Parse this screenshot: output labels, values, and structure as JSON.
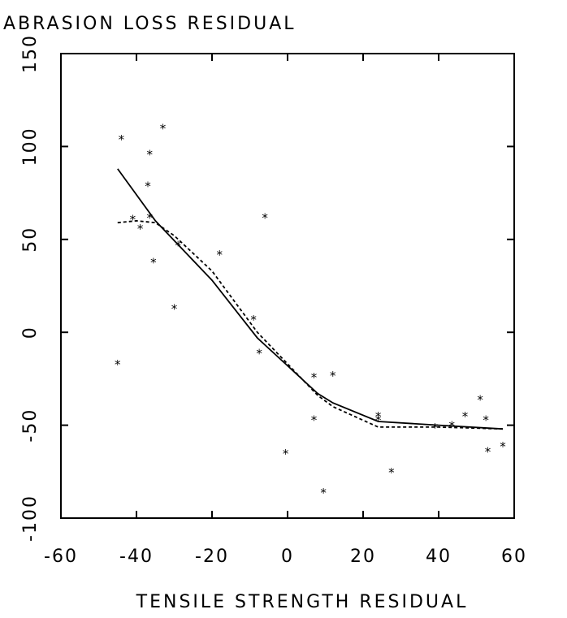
{
  "chart_data": {
    "type": "scatter",
    "title": "ABRASION LOSS RESIDUAL",
    "xlabel": "TENSILE STRENGTH RESIDUAL",
    "ylabel": "",
    "xlim": [
      -60,
      60
    ],
    "ylim": [
      -100,
      150
    ],
    "xticks": [
      -60,
      -40,
      -20,
      0,
      20,
      40,
      60
    ],
    "yticks": [
      -100,
      -50,
      0,
      50,
      100,
      150
    ],
    "xtick_labels": [
      "-60",
      "-40",
      "-20",
      "0",
      "20",
      "40",
      "60"
    ],
    "ytick_labels": [
      "-100",
      "-50",
      "0",
      "50",
      "100",
      "150"
    ],
    "grid": false,
    "marker": "*",
    "points": [
      {
        "x": -45,
        "y": -17
      },
      {
        "x": -44,
        "y": 104
      },
      {
        "x": -41,
        "y": 61
      },
      {
        "x": -39,
        "y": 56
      },
      {
        "x": -37,
        "y": 79
      },
      {
        "x": -36.5,
        "y": 96
      },
      {
        "x": -36.5,
        "y": 62
      },
      {
        "x": -35.5,
        "y": 38
      },
      {
        "x": -33,
        "y": 110
      },
      {
        "x": -30,
        "y": 13
      },
      {
        "x": -29,
        "y": 47
      },
      {
        "x": -18,
        "y": 42
      },
      {
        "x": -9,
        "y": 7
      },
      {
        "x": -7.5,
        "y": -11
      },
      {
        "x": -6,
        "y": 62
      },
      {
        "x": -0.5,
        "y": -65
      },
      {
        "x": 7,
        "y": -24
      },
      {
        "x": 7,
        "y": -47
      },
      {
        "x": 9.5,
        "y": -86
      },
      {
        "x": 12,
        "y": -23
      },
      {
        "x": 24,
        "y": -45
      },
      {
        "x": 24,
        "y": -47
      },
      {
        "x": 27.5,
        "y": -75
      },
      {
        "x": 39,
        "y": -51
      },
      {
        "x": 43.5,
        "y": -50
      },
      {
        "x": 47,
        "y": -45
      },
      {
        "x": 51,
        "y": -36
      },
      {
        "x": 52.5,
        "y": -47
      },
      {
        "x": 53,
        "y": -64
      },
      {
        "x": 57,
        "y": -61
      }
    ],
    "lines": [
      {
        "style": "solid",
        "x": [
          -45,
          -35,
          -20,
          -8,
          0,
          8,
          12,
          24,
          40,
          57
        ],
        "y": [
          88,
          60,
          28,
          -3,
          -18,
          -33,
          -38,
          -48,
          -50,
          -52
        ]
      },
      {
        "style": "dashed",
        "x": [
          -45,
          -40,
          -35,
          -30,
          -20,
          -8,
          0,
          8,
          12,
          24,
          40,
          57
        ],
        "y": [
          59,
          60,
          59,
          52,
          33,
          0,
          -17,
          -34,
          -40,
          -51,
          -51,
          -52
        ]
      }
    ]
  }
}
